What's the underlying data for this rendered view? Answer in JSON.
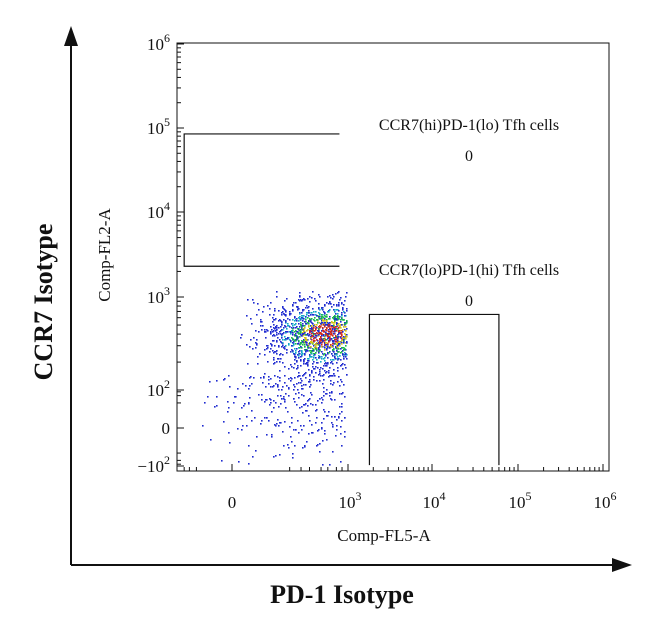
{
  "chart_data": {
    "type": "scatter",
    "subtype": "flow-cytometry density dot plot (biexponential axes)",
    "outer_xlabel": "PD-1 Isotype",
    "outer_ylabel": "CCR7 Isotype",
    "xlabel": "Comp-FL5-A",
    "ylabel": "Comp-FL2-A",
    "x_scale": "biexponential",
    "y_scale": "biexponential",
    "xlim": [
      -150,
      1000000
    ],
    "ylim": [
      -120,
      1000000
    ],
    "x_ticks": [
      {
        "value": 0,
        "base": "0",
        "exp": ""
      },
      {
        "value": 1000,
        "base": "10",
        "exp": "3"
      },
      {
        "value": 10000,
        "base": "10",
        "exp": "4"
      },
      {
        "value": 100000,
        "base": "10",
        "exp": "5"
      },
      {
        "value": 1000000,
        "base": "10",
        "exp": "6"
      }
    ],
    "y_ticks": [
      {
        "value": -100,
        "base": "−10",
        "exp": "2"
      },
      {
        "value": 0,
        "base": "0",
        "exp": ""
      },
      {
        "value": 100,
        "base": "10",
        "exp": "2"
      },
      {
        "value": 1000,
        "base": "10",
        "exp": "3"
      },
      {
        "value": 10000,
        "base": "10",
        "exp": "4"
      },
      {
        "value": 100000,
        "base": "10",
        "exp": "5"
      },
      {
        "value": 1000000,
        "base": "10",
        "exp": "6"
      }
    ],
    "gates": [
      {
        "name": "CCR7(hi)PD-1(lo) Tfh cells",
        "count": "0",
        "x_range": [
          -100,
          600
        ],
        "y_range": [
          2300,
          85000
        ],
        "open_side": "right"
      },
      {
        "name": "CCR7(lo)PD-1(hi) Tfh cells",
        "count": "0",
        "x_range": [
          1800,
          60000
        ],
        "y_range": [
          -90,
          650
        ],
        "open_side": "bottom"
      }
    ],
    "events": {
      "description": "single dense cluster of events",
      "center": [
        250,
        400
      ],
      "x_range": [
        -80,
        900
      ],
      "y_range": [
        -100,
        1200
      ],
      "density_colors": [
        "#1f2bd0",
        "#11a6c8",
        "#19b94a",
        "#d2c415",
        "#d12a1a"
      ]
    },
    "grid": false
  }
}
